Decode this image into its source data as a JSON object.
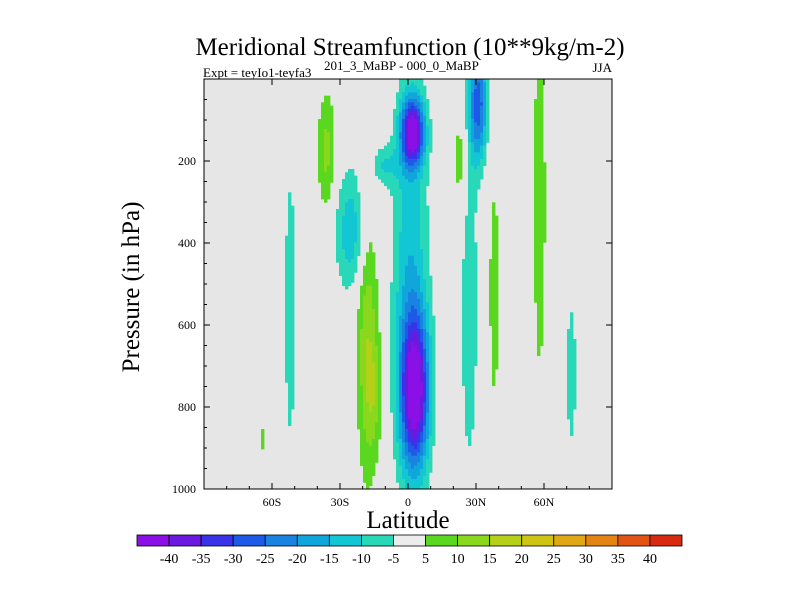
{
  "chart_data": {
    "type": "heatmap",
    "title": "Meridional Streamfunction (10**9kg/m-2)",
    "subtitle_left_a": "Expt = teyIo1-teyfa3",
    "subtitle_left_b": "201_3_MaBP - 000_0_MaBP",
    "subtitle_right": "JJA",
    "xlabel": "Latitude",
    "ylabel": "Pressure (in hPa)",
    "xlim": [
      -90,
      90
    ],
    "ylim": [
      1000,
      0
    ],
    "x_ticks": [
      {
        "value": -60,
        "label": "60S"
      },
      {
        "value": -30,
        "label": "30S"
      },
      {
        "value": 0,
        "label": "0"
      },
      {
        "value": 30,
        "label": "30N"
      },
      {
        "value": 60,
        "label": "60N"
      }
    ],
    "y_ticks": [
      {
        "value": 200,
        "label": "200"
      },
      {
        "value": 400,
        "label": "400"
      },
      {
        "value": 600,
        "label": "600"
      },
      {
        "value": 800,
        "label": "800"
      },
      {
        "value": 1000,
        "label": "1000"
      }
    ],
    "missing_color": "#e6e6e6",
    "colorbar": {
      "labels": [
        "-40",
        "-35",
        "-30",
        "-25",
        "-20",
        "-15",
        "-10",
        "-5",
        "5",
        "10",
        "15",
        "20",
        "25",
        "30",
        "35",
        "40"
      ],
      "colors": [
        "#8a10e6",
        "#6a1ae0",
        "#3a32e8",
        "#1e5ae8",
        "#1a82e0",
        "#10a6dc",
        "#12c6d4",
        "#28d8b8",
        "#ececec",
        "#5ad820",
        "#8ad81e",
        "#b4d018",
        "#cfc414",
        "#e0a814",
        "#e48414",
        "#e25414",
        "#d82a10"
      ]
    },
    "features": [
      {
        "name": "tropical-upper-negative-core",
        "lat": 2,
        "p": 130,
        "sx": 5,
        "sy": 80,
        "amp": -42
      },
      {
        "name": "tropical-lower-negative-core",
        "lat": 3,
        "p": 760,
        "sx": 6,
        "sy": 180,
        "amp": -42
      },
      {
        "name": "equatorial-negative-column",
        "lat": 1,
        "p": 500,
        "sx": 8,
        "sy": 500,
        "amp": -14
      },
      {
        "name": "cross-equator-upper-tongue",
        "lat": -12,
        "p": 210,
        "sx": 8,
        "sy": 50,
        "amp": -10
      },
      {
        "name": "southern-mid-negative",
        "lat": -24,
        "p": 370,
        "sx": 8,
        "sy": 150,
        "amp": -15
      },
      {
        "name": "southern-positive-band",
        "lat": -18,
        "p": 560,
        "sx": 5,
        "sy": 420,
        "amp": 14
      },
      {
        "name": "southern-positive-lower",
        "lat": -15,
        "p": 770,
        "sx": 4,
        "sy": 140,
        "amp": 8
      },
      {
        "name": "southern-positive-upper",
        "lat": -36,
        "p": 180,
        "sx": 4,
        "sy": 150,
        "amp": 12
      },
      {
        "name": "far-southern-negative",
        "lat": -52,
        "p": 560,
        "sx": 3,
        "sy": 420,
        "amp": -8
      },
      {
        "name": "polar-positive-south",
        "lat": -64,
        "p": 880,
        "sx": 2,
        "sy": 60,
        "amp": 6
      },
      {
        "name": "northern-upper-negative",
        "lat": 31,
        "p": 60,
        "sx": 4,
        "sy": 140,
        "amp": -28
      },
      {
        "name": "northern-upper-positive",
        "lat": 23,
        "p": 200,
        "sx": 3,
        "sy": 160,
        "amp": 8
      },
      {
        "name": "northern-mid-negative",
        "lat": 27,
        "p": 550,
        "sx": 4,
        "sy": 450,
        "amp": -9
      },
      {
        "name": "northern-mid-positive",
        "lat": 38,
        "p": 520,
        "sx": 3,
        "sy": 400,
        "amp": 7
      },
      {
        "name": "northern-outer-positive",
        "lat": 58,
        "p": 300,
        "sx": 3,
        "sy": 500,
        "amp": 9
      },
      {
        "name": "northern-outer-negative",
        "lat": 72,
        "p": 720,
        "sx": 3,
        "sy": 260,
        "amp": -7
      }
    ]
  }
}
